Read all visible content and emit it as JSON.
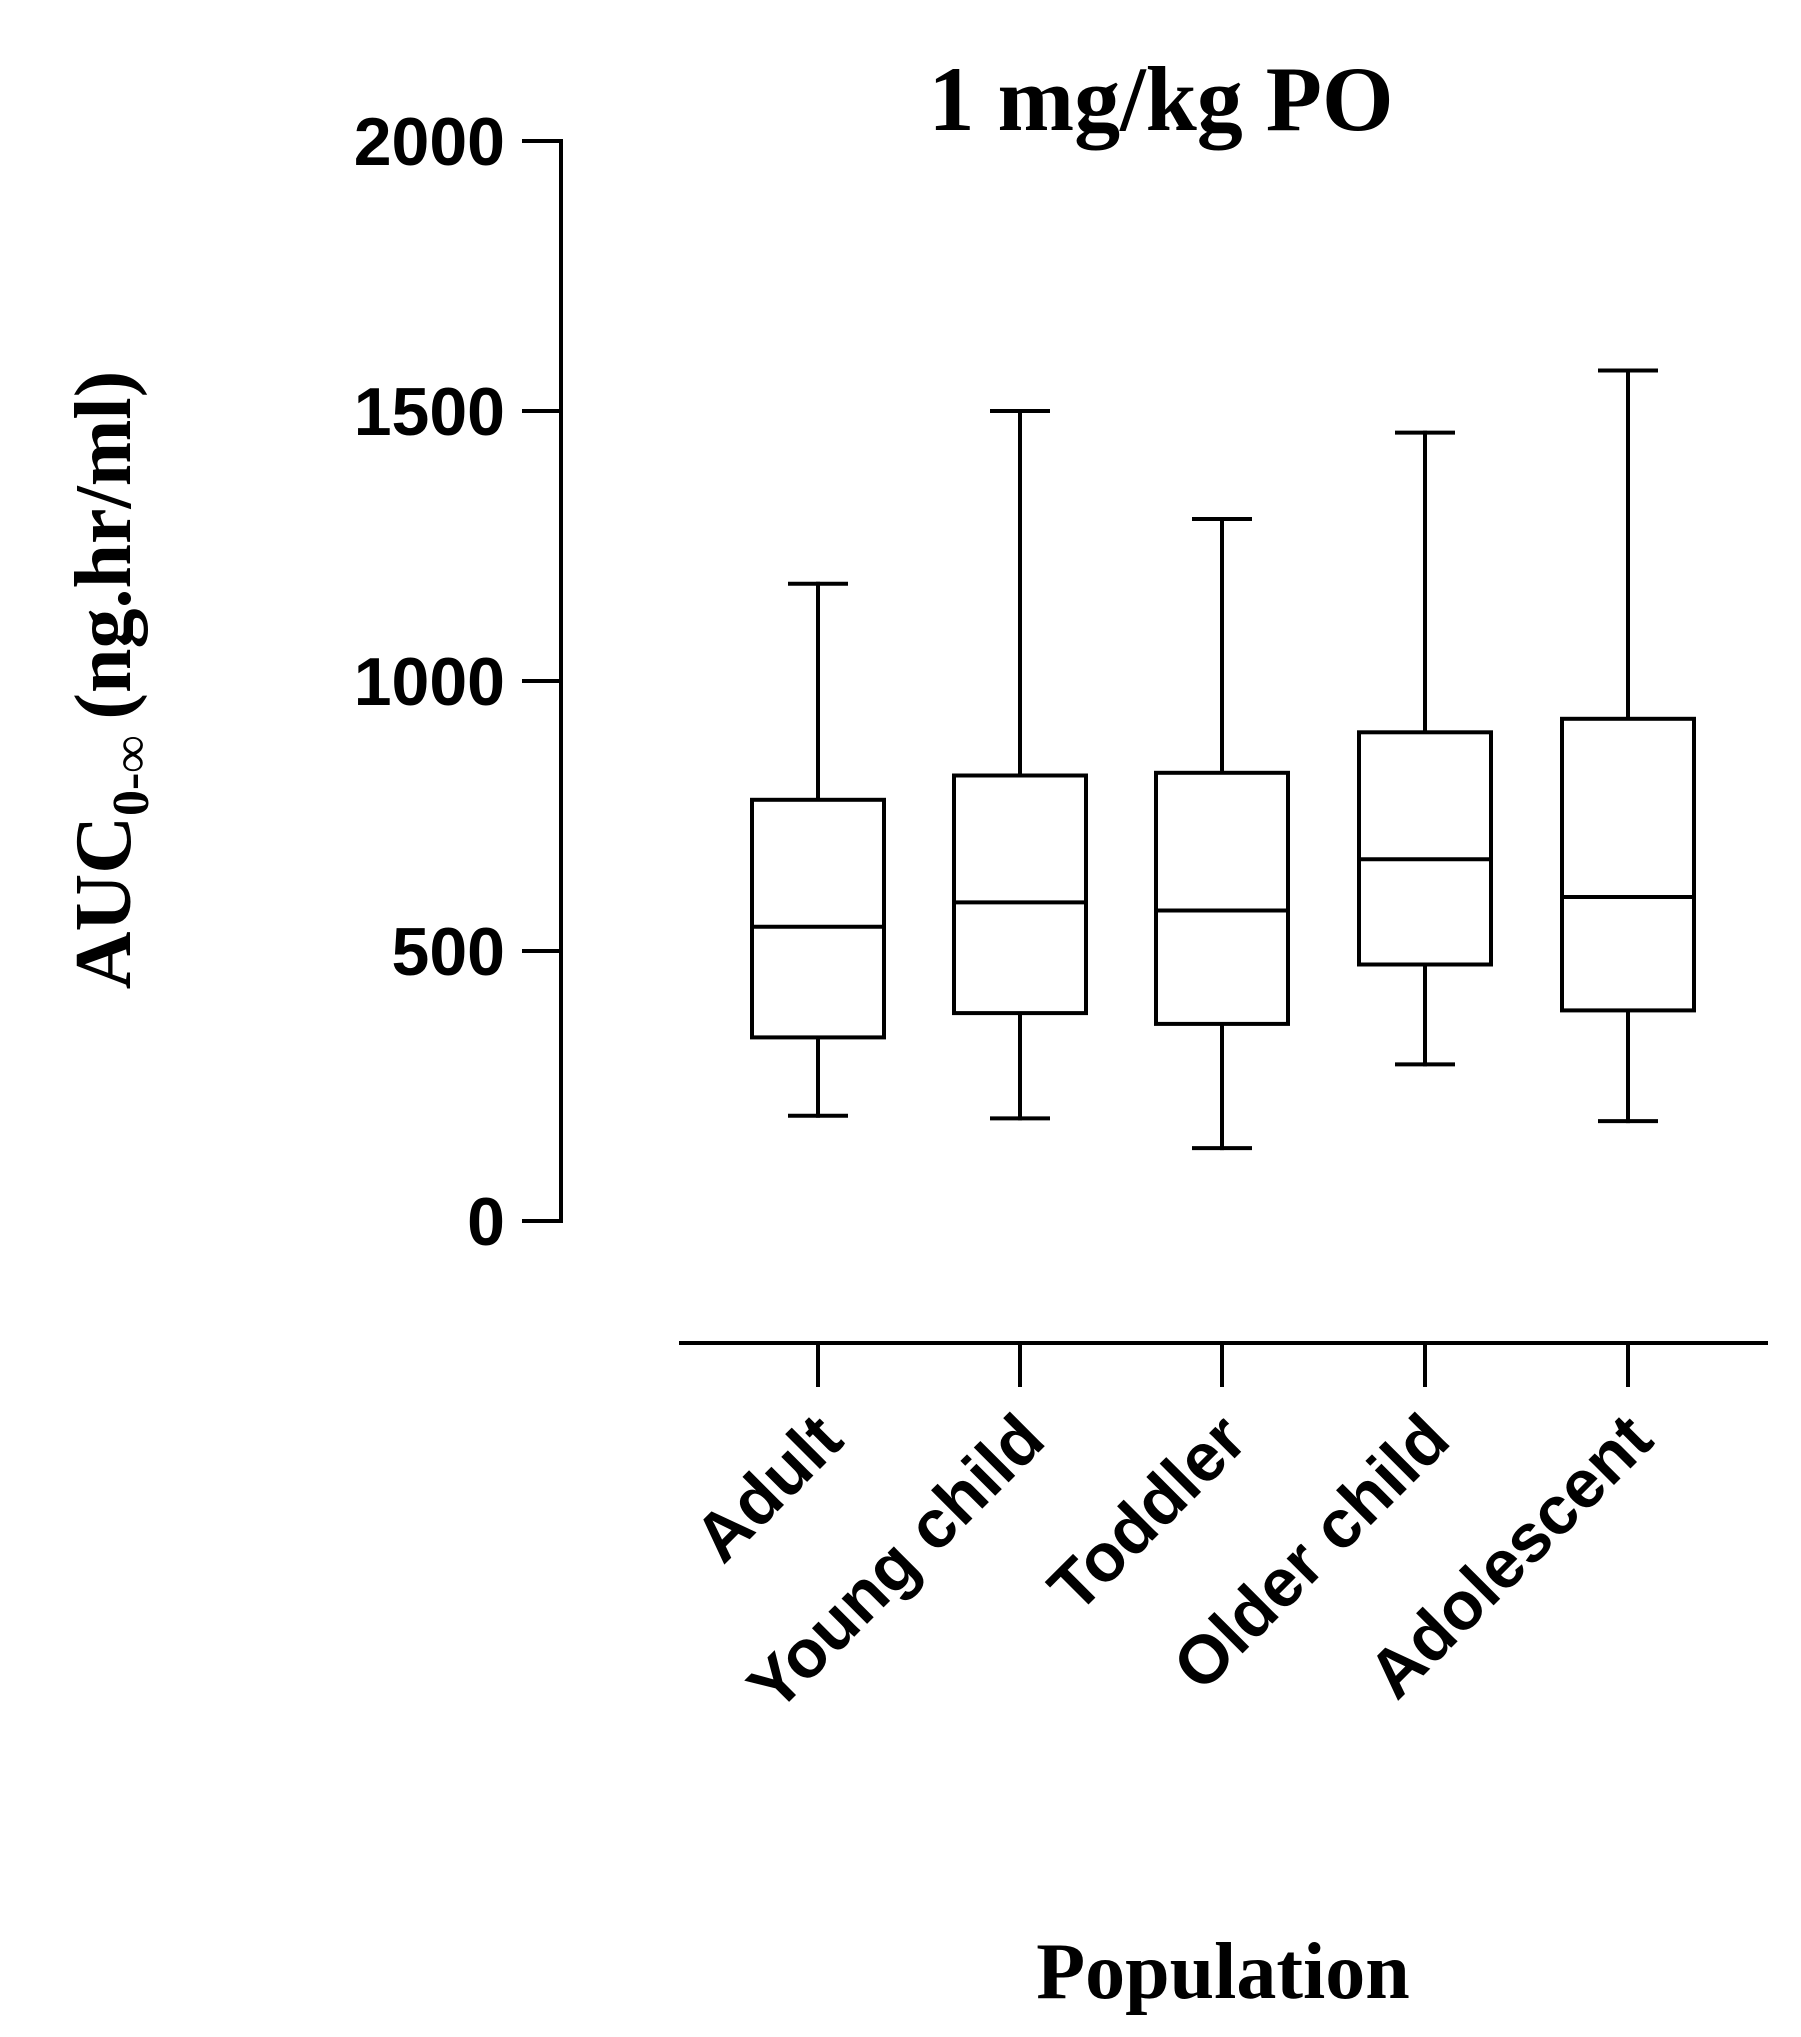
{
  "chart_data": {
    "type": "box",
    "title": "1 mg/kg PO",
    "xlabel": "Population",
    "ylabel": {
      "main": "AUC",
      "subscript": "0-∞",
      "units": "(ng.hr/ml)"
    },
    "ylim": [
      0,
      2000
    ],
    "yticks": [
      "0",
      "500",
      "1000",
      "1500",
      "2000"
    ],
    "categories": [
      "Adult",
      "Young child",
      "Toddler",
      "Older child",
      "Adolescent"
    ],
    "series": [
      {
        "name": "Adult",
        "min": 195,
        "q1": 340,
        "median": 545,
        "q3": 780,
        "max": 1180
      },
      {
        "name": "Young child",
        "min": 190,
        "q1": 385,
        "median": 590,
        "q3": 825,
        "max": 1500
      },
      {
        "name": "Toddler",
        "min": 135,
        "q1": 365,
        "median": 575,
        "q3": 830,
        "max": 1300
      },
      {
        "name": "Older child",
        "min": 290,
        "q1": 475,
        "median": 670,
        "q3": 905,
        "max": 1460
      },
      {
        "name": "Adolescent",
        "min": 185,
        "q1": 390,
        "median": 600,
        "q3": 930,
        "max": 1575
      }
    ]
  }
}
